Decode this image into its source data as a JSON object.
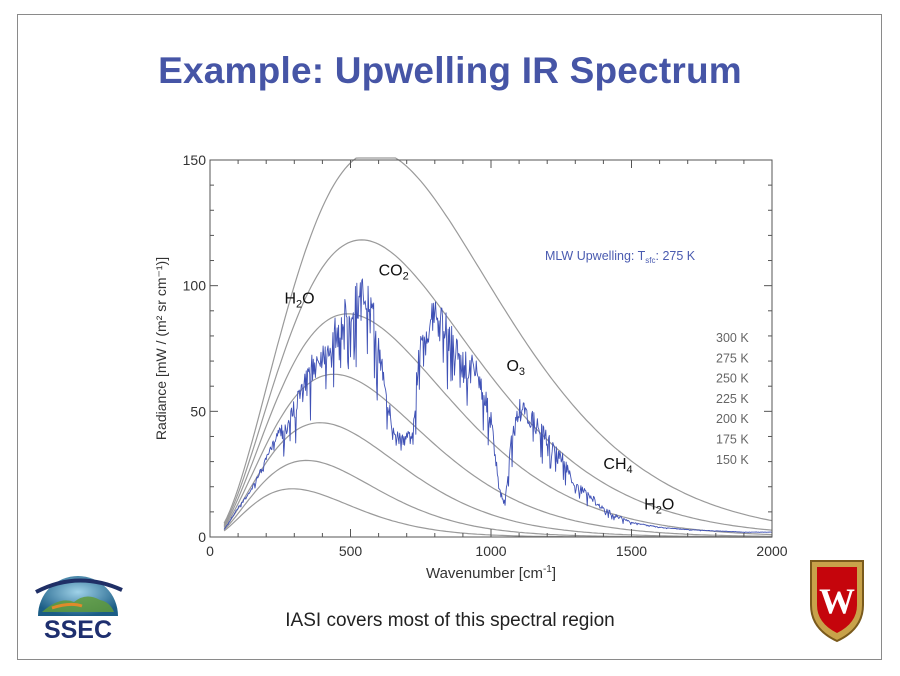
{
  "slide": {
    "title": "Example: Upwelling IR Spectrum",
    "caption": "IASI covers most of this spectral region"
  },
  "logos": {
    "left": {
      "text": "SSEC",
      "icon": "ssec-globe-logo"
    },
    "right": {
      "letter": "W",
      "icon": "uw-crest-logo"
    }
  },
  "chart_data": {
    "type": "line",
    "xlabel_main": "Wavenumber [cm",
    "xlabel_sup": "-1",
    "xlabel_end": "]",
    "ylabel": "Radiance [mW / (m² sr cm⁻¹)]",
    "xlim": [
      0,
      2000
    ],
    "ylim": [
      0,
      150
    ],
    "xticks": [
      0,
      500,
      1000,
      1500,
      2000
    ],
    "yticks": [
      0,
      50,
      100,
      150
    ],
    "grid": false,
    "colors": {
      "spectrum": "#3f51b5",
      "planck": "#9a9a9a",
      "axis": "#555555",
      "annot_blue": "#4a5bb0"
    },
    "model_label": {
      "prefix": "MLW Upwelling: T",
      "sub": "sfc",
      "suffix": ": 275 K"
    },
    "planck_temperatures": [
      300,
      275,
      250,
      225,
      200,
      175,
      150
    ],
    "planck_labels": [
      "300 K",
      "275 K",
      "250 K",
      "225 K",
      "200 K",
      "175 K",
      "150 K"
    ],
    "gas_labels": [
      {
        "base": "H",
        "sub": "2",
        "rest": "O",
        "x": 265,
        "y": 93
      },
      {
        "base": "CO",
        "sub": "2",
        "rest": "",
        "x": 600,
        "y": 104
      },
      {
        "base": "O",
        "sub": "3",
        "rest": "",
        "x": 1055,
        "y": 66
      },
      {
        "base": "CH",
        "sub": "4",
        "rest": "",
        "x": 1400,
        "y": 27
      },
      {
        "base": "H",
        "sub": "2",
        "rest": "O",
        "x": 1545,
        "y": 11
      }
    ],
    "spectrum": [
      [
        50,
        3
      ],
      [
        100,
        12
      ],
      [
        150,
        20
      ],
      [
        200,
        32
      ],
      [
        250,
        45
      ],
      [
        300,
        55
      ],
      [
        350,
        70
      ],
      [
        400,
        80
      ],
      [
        450,
        88
      ],
      [
        500,
        100
      ],
      [
        550,
        105
      ],
      [
        580,
        95
      ],
      [
        600,
        80
      ],
      [
        620,
        70
      ],
      [
        650,
        45
      ],
      [
        700,
        42
      ],
      [
        720,
        45
      ],
      [
        750,
        88
      ],
      [
        800,
        95
      ],
      [
        850,
        88
      ],
      [
        900,
        75
      ],
      [
        950,
        72
      ],
      [
        1000,
        50
      ],
      [
        1030,
        20
      ],
      [
        1050,
        14
      ],
      [
        1070,
        40
      ],
      [
        1100,
        55
      ],
      [
        1150,
        50
      ],
      [
        1200,
        42
      ],
      [
        1250,
        35
      ],
      [
        1300,
        22
      ],
      [
        1350,
        18
      ],
      [
        1400,
        12
      ],
      [
        1450,
        9
      ],
      [
        1500,
        6
      ],
      [
        1550,
        5
      ],
      [
        1600,
        4
      ],
      [
        1700,
        3
      ],
      [
        1800,
        2.5
      ],
      [
        1900,
        2
      ],
      [
        2000,
        2
      ]
    ]
  }
}
